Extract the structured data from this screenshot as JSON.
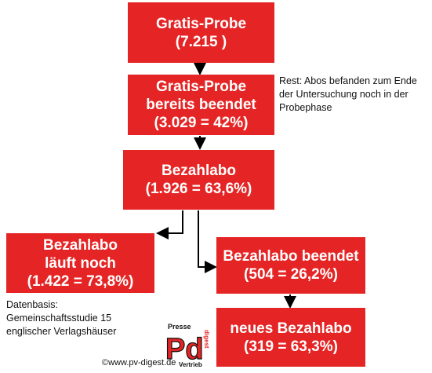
{
  "boxes": {
    "gratis_probe": {
      "line1": "Gratis-Probe",
      "line2": "(7.215 )"
    },
    "beendet": {
      "line1": "Gratis-Probe",
      "line2": "bereits beendet",
      "line3": "(3.029 = 42%)"
    },
    "bezahlabo": {
      "line1": "Bezahlabo",
      "line2": "(1.926 = 63,6%)"
    },
    "laeuft": {
      "line1": "Bezahlabo",
      "line2": "läuft noch",
      "line3": "(1.422 = 73,8%)"
    },
    "abo_beendet": {
      "line1": "Bezahlabo beendet",
      "line2": "(504 = 26,2%)"
    },
    "neues": {
      "line1": "neues Bezahlabo",
      "line2": "(319 = 63,3%)"
    }
  },
  "notes": {
    "rest": {
      "line1": "Rest: Abos befanden zum Ende",
      "line2": "der Untersuchung noch in der",
      "line3": "Probephase"
    },
    "datenbasis": {
      "line1": "Datenbasis:",
      "line2": "Gemeinschaftsstudie 15",
      "line3": "englischer Verlagshäuser"
    }
  },
  "footer": {
    "copyright": "©www.pv-digest.de",
    "logo_top": "Presse",
    "logo_letters": "Pd",
    "logo_side": "digest",
    "logo_bottom": "Vertrieb"
  },
  "colors": {
    "box": "#e52525",
    "text_on_box": "#ffffff",
    "arrow": "#000000"
  }
}
